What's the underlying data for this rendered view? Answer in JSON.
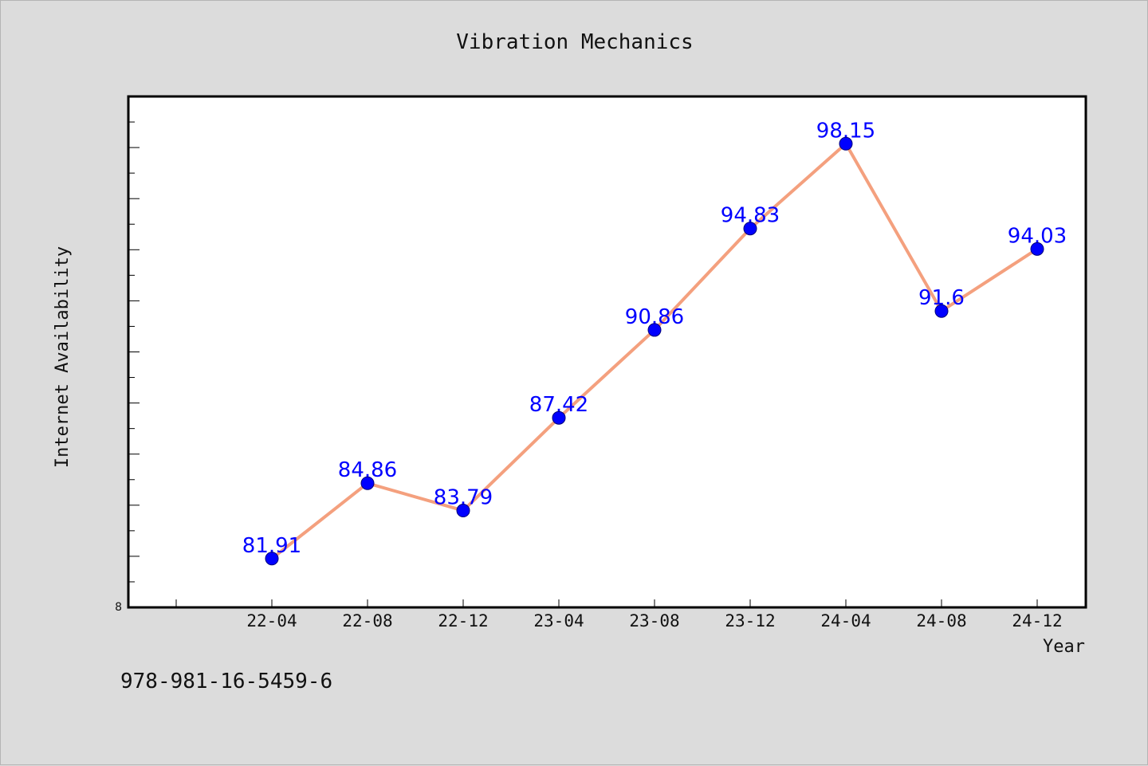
{
  "chart_data": {
    "type": "line",
    "title": "Vibration Mechanics",
    "xlabel": "Year",
    "ylabel": "Internet Availability",
    "categories": [
      "22-04",
      "22-08",
      "22-12",
      "23-04",
      "23-08",
      "23-12",
      "24-04",
      "24-08",
      "24-12"
    ],
    "series": [
      {
        "values": [
          81.91,
          84.86,
          83.79,
          87.42,
          90.86,
          94.83,
          98.15,
          91.6,
          94.03
        ],
        "labels": [
          "81.91",
          "84.86",
          "83.79",
          "87.42",
          "90.86",
          "94.83",
          "98.15",
          "91.6",
          "94.03"
        ],
        "line_color": "#f4a07e",
        "marker_color": "#0000ff"
      }
    ],
    "y_tick_label": "8",
    "ylim": [
      80,
      100
    ],
    "grid": false,
    "legend": "none"
  },
  "footer_text": "978-981-16-5459-6"
}
